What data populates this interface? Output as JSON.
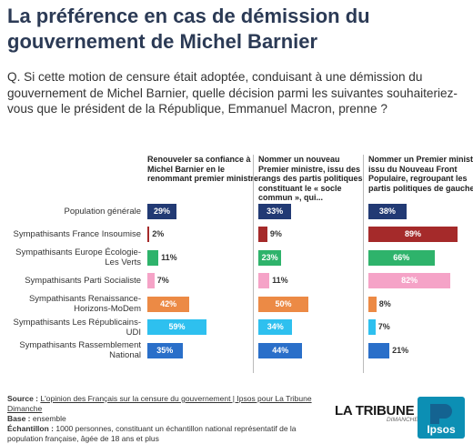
{
  "title": "La préférence en cas de démission du gouvernement de Michel Barnier",
  "question": "Q. Si cette motion de censure était adoptée, conduisant à une démission du gouvernement de Michel Barnier, quelle décision parmi les suivantes souhaiteriez-vous que le président de la République, Emmanuel Macron, prenne ?",
  "chart_data": {
    "type": "bar",
    "orientation": "horizontal",
    "categories": [
      "Population générale",
      "Sympathisants France Insoumise",
      "Sympathisants Europe Écologie-Les Verts",
      "Sympathisants Parti Socialiste",
      "Sympathisants Renaissance-Horizons-MoDem",
      "Sympathisants Les Républicains-UDI",
      "Sympathisants Rassemblement National"
    ],
    "category_colors": [
      "#223a74",
      "#a52a2a",
      "#2eb36b",
      "#f5a3c7",
      "#ec8a45",
      "#2ec0ef",
      "#2a6fc9"
    ],
    "series": [
      {
        "name": "Renouveler sa confiance à Michel Barnier en le renommant premier ministre",
        "values": [
          29,
          2,
          11,
          7,
          42,
          59,
          35
        ],
        "labels": [
          "29%",
          "2%",
          "11%",
          "7%",
          "42%",
          "59%",
          "35%"
        ]
      },
      {
        "name": "Nommer un nouveau Premier ministre, issu des rangs des partis politiques constituant le « socle commun », qui...",
        "values": [
          33,
          9,
          23,
          11,
          50,
          34,
          44
        ],
        "labels": [
          "33%",
          "9%",
          "23%",
          "11%",
          "50%",
          "34%",
          "44%"
        ]
      },
      {
        "name": "Nommer un Premier ministre issu du Nouveau Front Populaire, regroupant les partis politiques de gauche",
        "values": [
          38,
          89,
          66,
          82,
          8,
          7,
          21
        ],
        "labels": [
          "38%",
          "89%",
          "66%",
          "82%",
          "8%",
          "7%",
          "21%"
        ]
      }
    ],
    "xlim": [
      0,
      100
    ]
  },
  "footer": {
    "source_label": "Source :",
    "source_text": "L'opinion des Français sur la censure du gouvernement | Ipsos pour La Tribune Dimanche",
    "base_label": "Base :",
    "base_text": "ensemble",
    "sample_label": "Échantillon :",
    "sample_text": "1000 personnes, constituant un échantillon national représentatif de la population française, âgée de 18 ans et plus"
  },
  "logos": {
    "tribune": "LA TRIBUNE",
    "tribune_sub": "DIMANCHE",
    "ipsos": "Ipsos"
  }
}
